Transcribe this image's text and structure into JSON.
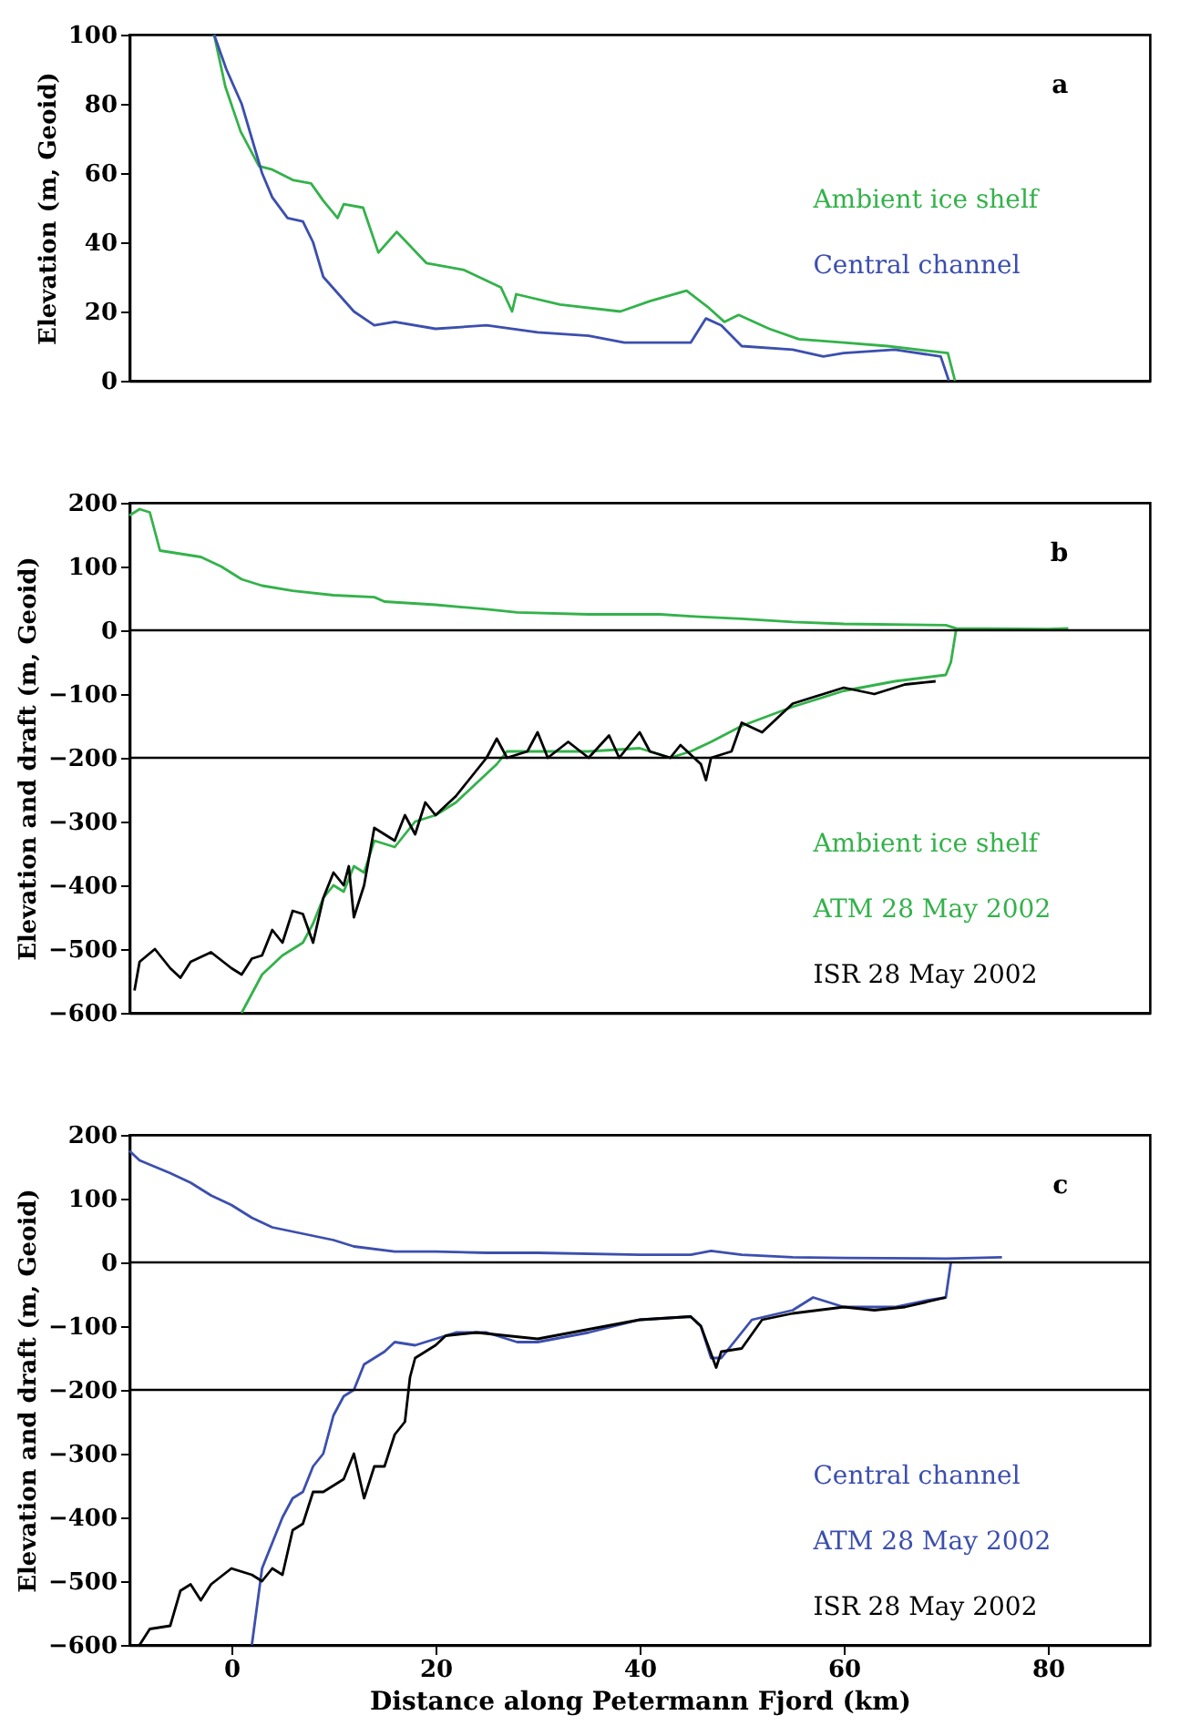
{
  "chart_data": [
    {
      "type": "line",
      "ylabel": "Elevation (m, Geoid)",
      "xlim": [
        -10,
        90
      ],
      "xticks": [
        0,
        20,
        40,
        60,
        80
      ],
      "ylim": [
        0,
        100
      ],
      "yticks": [
        0,
        20,
        40,
        60,
        80,
        100
      ],
      "tick_labels": "y",
      "grid": false,
      "marker": "none",
      "line_style": "solid",
      "annotations": [
        "a"
      ],
      "series": [
        {
          "name": "Ambient ice shelf",
          "color": "#33b24a",
          "x": [
            -1.7,
            -0.6,
            0.9,
            2.7,
            4,
            6,
            7.8,
            9,
            10.4,
            11,
            12.9,
            14.4,
            16.2,
            19.1,
            22.8,
            26.4,
            27.5,
            27.9,
            32.2,
            38.1,
            41,
            44.6,
            46.8,
            48.3,
            49.7,
            52.7,
            55.6,
            60,
            64.3,
            70.2,
            70.9
          ],
          "values": [
            100,
            85,
            72,
            62,
            61,
            58,
            57,
            52,
            47,
            51,
            50,
            37,
            43,
            34,
            32,
            27,
            20,
            25,
            22,
            20,
            23,
            26,
            21,
            17,
            19,
            15,
            12,
            11,
            10,
            8,
            0
          ]
        },
        {
          "name": "Central channel",
          "color": "#3c4fae",
          "x": [
            -1.7,
            -0.5,
            1,
            2,
            3,
            4,
            5.5,
            7,
            8,
            9,
            10.5,
            12,
            14,
            16,
            20,
            25,
            30,
            35,
            38.5,
            45,
            46.5,
            48,
            50,
            55,
            58,
            60,
            65,
            69.5,
            70.3
          ],
          "values": [
            100,
            90,
            80,
            70,
            60,
            53,
            47,
            46,
            40,
            30,
            25,
            20,
            16,
            17,
            15,
            16,
            14,
            13,
            11,
            11,
            18,
            16,
            10,
            9,
            7,
            8,
            9,
            7,
            0
          ]
        }
      ]
    },
    {
      "type": "line",
      "ylabel": "Elevation and draft (m, Geoid)",
      "xlim": [
        -10,
        90
      ],
      "xticks": [
        0,
        20,
        40,
        60,
        80
      ],
      "ylim": [
        -600,
        200
      ],
      "yticks": [
        -600,
        -500,
        -400,
        -300,
        -200,
        -100,
        0,
        100,
        200
      ],
      "tick_labels": "y",
      "grid": false,
      "marker": "none",
      "line_style": "solid",
      "annotations": [
        "b",
        "Ambient ice shelf"
      ],
      "ref_lines": [
        {
          "axis": "y",
          "value": 0,
          "color": "#000000"
        },
        {
          "axis": "y",
          "value": -200,
          "color": "#000000"
        }
      ],
      "series": [
        {
          "color": "#33b24a",
          "x": [
            -10,
            -9,
            -8,
            -7,
            -5,
            -3,
            -1,
            1,
            3,
            6,
            10,
            14,
            15,
            20,
            25,
            28,
            35,
            42,
            45,
            50,
            55,
            60,
            70,
            71,
            80,
            82
          ],
          "values": [
            180,
            190,
            185,
            125,
            120,
            115,
            100,
            80,
            70,
            62,
            55,
            52,
            45,
            40,
            33,
            28,
            25,
            25,
            22,
            18,
            13,
            10,
            8,
            3,
            2,
            3
          ]
        },
        {
          "name": "ATM 28 May 2002",
          "color": "#33b24a",
          "x": [
            1,
            3,
            5,
            7,
            8,
            9,
            10,
            11,
            12,
            13,
            14,
            16,
            18,
            20,
            22,
            24,
            26,
            27,
            30,
            35,
            40,
            43,
            45,
            47,
            50,
            55,
            60,
            65,
            70,
            70.5,
            71
          ],
          "values": [
            -600,
            -540,
            -510,
            -490,
            -460,
            -420,
            -400,
            -410,
            -370,
            -380,
            -330,
            -340,
            -300,
            -290,
            -270,
            -240,
            -210,
            -190,
            -190,
            -190,
            -185,
            -200,
            -190,
            -175,
            -150,
            -120,
            -95,
            -80,
            -70,
            -50,
            0
          ]
        },
        {
          "name": "ISR 28 May 2002",
          "color": "#000000",
          "x": [
            -9.5,
            -9,
            -7.5,
            -6,
            -5,
            -4,
            -2,
            0,
            1,
            2,
            3,
            4,
            5,
            6,
            7,
            8,
            9,
            10,
            11,
            11.5,
            12,
            13,
            14,
            16,
            17,
            18,
            19,
            20,
            22,
            23,
            25,
            26,
            27,
            29,
            30,
            31,
            33,
            35,
            37,
            38,
            40,
            41,
            43,
            44,
            46,
            46.5,
            47,
            49,
            50,
            52,
            55,
            58,
            60,
            63,
            66,
            69
          ],
          "values": [
            -565,
            -520,
            -500,
            -530,
            -545,
            -520,
            -505,
            -530,
            -540,
            -515,
            -510,
            -470,
            -490,
            -440,
            -445,
            -490,
            -420,
            -380,
            -400,
            -370,
            -450,
            -400,
            -310,
            -330,
            -290,
            -320,
            -270,
            -290,
            -260,
            -240,
            -200,
            -170,
            -200,
            -190,
            -160,
            -200,
            -175,
            -200,
            -165,
            -200,
            -160,
            -190,
            -200,
            -180,
            -210,
            -235,
            -200,
            -190,
            -145,
            -160,
            -115,
            -100,
            -90,
            -100,
            -85,
            -80
          ]
        }
      ]
    },
    {
      "type": "line",
      "xlabel": "Distance along Petermann Fjord (km)",
      "ylabel": "Elevation and draft (m, Geoid)",
      "xlim": [
        -10,
        90
      ],
      "xticks": [
        0,
        20,
        40,
        60,
        80
      ],
      "ylim": [
        -600,
        200
      ],
      "yticks": [
        -600,
        -500,
        -400,
        -300,
        -200,
        -100,
        0,
        100,
        200
      ],
      "grid": false,
      "marker": "none",
      "line_style": "solid",
      "annotations": [
        "c",
        "Central channel"
      ],
      "ref_lines": [
        {
          "axis": "y",
          "value": 0,
          "color": "#000000"
        },
        {
          "axis": "y",
          "value": -200,
          "color": "#000000"
        }
      ],
      "series": [
        {
          "color": "#3c4fae",
          "x": [
            -10,
            -9,
            -6,
            -4,
            -2,
            0,
            2,
            4,
            7,
            10,
            12,
            16,
            20,
            25,
            30,
            40,
            45,
            47,
            50,
            55,
            60,
            70,
            75.5
          ],
          "values": [
            175,
            160,
            140,
            125,
            105,
            90,
            70,
            55,
            45,
            35,
            25,
            17,
            17,
            15,
            15,
            12,
            12,
            18,
            12,
            8,
            7,
            6,
            8
          ]
        },
        {
          "name": "ATM 28 May 2002",
          "color": "#3c4fae",
          "x": [
            2,
            3,
            4,
            5,
            6,
            7,
            8,
            9,
            10,
            11,
            12,
            13,
            15,
            16,
            18,
            20,
            22,
            25,
            28,
            30,
            35,
            40,
            45,
            46,
            47,
            48,
            49,
            51,
            55,
            57,
            60,
            65,
            68,
            70,
            70.5
          ],
          "values": [
            -600,
            -480,
            -440,
            -400,
            -370,
            -360,
            -320,
            -300,
            -240,
            -210,
            -200,
            -160,
            -140,
            -125,
            -130,
            -120,
            -110,
            -110,
            -125,
            -125,
            -110,
            -90,
            -85,
            -100,
            -150,
            -150,
            -130,
            -90,
            -75,
            -55,
            -70,
            -70,
            -60,
            -55,
            0
          ]
        },
        {
          "name": "ISR 28 May 2002",
          "color": "#000000",
          "x": [
            -9,
            -8,
            -6,
            -5,
            -4,
            -3,
            -2,
            0,
            2,
            3,
            4,
            5,
            6,
            7,
            8,
            9,
            10,
            11,
            12,
            13,
            14,
            15,
            16,
            17,
            17.5,
            18,
            20,
            21,
            24,
            27,
            30,
            35,
            40,
            45,
            46,
            47.5,
            48,
            50,
            52,
            55,
            60,
            63,
            66,
            70
          ],
          "values": [
            -600,
            -575,
            -570,
            -515,
            -505,
            -530,
            -505,
            -480,
            -490,
            -500,
            -480,
            -490,
            -420,
            -410,
            -360,
            -360,
            -350,
            -340,
            -300,
            -370,
            -320,
            -320,
            -270,
            -250,
            -180,
            -150,
            -130,
            -115,
            -110,
            -115,
            -120,
            -105,
            -90,
            -85,
            -100,
            -165,
            -140,
            -135,
            -90,
            -80,
            -70,
            -75,
            -70,
            -55
          ]
        }
      ]
    }
  ]
}
